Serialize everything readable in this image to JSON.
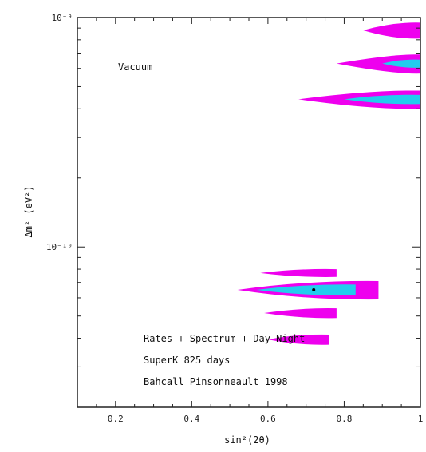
{
  "chart_data": {
    "type": "contour",
    "title": "",
    "xlabel": "sin²(2θ)",
    "ylabel": "Δm² (eV²)",
    "xlim": [
      0.1,
      1.0
    ],
    "ylim": [
      2e-11,
      1e-09
    ],
    "yscale": "log",
    "x_ticks": [
      {
        "value": 0.2,
        "label": "0.2"
      },
      {
        "value": 0.4,
        "label": "0.4"
      },
      {
        "value": 0.6,
        "label": "0.6"
      },
      {
        "value": 0.8,
        "label": "0.8"
      },
      {
        "value": 1.0,
        "label": "1"
      }
    ],
    "y_ticks": [
      {
        "value": 1e-09,
        "label": "10⁻⁹"
      },
      {
        "value": 1e-10,
        "label": "10⁻¹⁰"
      }
    ],
    "grid": false,
    "annotations": {
      "label": "Vacuum",
      "lines": [
        "Rates + Spectrum + Day-Night",
        "SuperK 825 days",
        "Bahcall Pinsonneault 1998"
      ]
    },
    "colors": {
      "outer": "#ee00ee",
      "inner": "#22ccee"
    },
    "best_fit": {
      "x": 0.72,
      "y": 6.5e-11
    },
    "regions": [
      {
        "level": "outer",
        "center": {
          "x": 0.93,
          "y": 8.8e-10
        },
        "x_extent": [
          0.85,
          1.0
        ],
        "y_extent": [
          8.1e-10,
          9.5e-10
        ]
      },
      {
        "level": "outer",
        "center": {
          "x": 0.93,
          "y": 6.3e-10
        },
        "x_extent": [
          0.78,
          1.0
        ],
        "y_extent": [
          5.7e-10,
          6.9e-10
        ]
      },
      {
        "level": "inner",
        "center": {
          "x": 0.95,
          "y": 6.3e-10
        },
        "x_extent": [
          0.9,
          1.0
        ],
        "y_extent": [
          6.05e-10,
          6.55e-10
        ]
      },
      {
        "level": "outer",
        "center": {
          "x": 0.87,
          "y": 4.4e-10
        },
        "x_extent": [
          0.68,
          1.0
        ],
        "y_extent": [
          4e-10,
          4.8e-10
        ]
      },
      {
        "level": "inner",
        "center": {
          "x": 0.9,
          "y": 4.4e-10
        },
        "x_extent": [
          0.8,
          1.0
        ],
        "y_extent": [
          4.2e-10,
          4.6e-10
        ]
      },
      {
        "level": "outer",
        "center": {
          "x": 0.68,
          "y": 7.7e-11
        },
        "x_extent": [
          0.58,
          0.78
        ],
        "y_extent": [
          7.4e-11,
          8e-11
        ]
      },
      {
        "level": "outer",
        "center": {
          "x": 0.7,
          "y": 6.5e-11
        },
        "x_extent": [
          0.52,
          0.89
        ],
        "y_extent": [
          5.9e-11,
          7.1e-11
        ]
      },
      {
        "level": "inner",
        "center": {
          "x": 0.7,
          "y": 6.5e-11
        },
        "x_extent": [
          0.57,
          0.83
        ],
        "y_extent": [
          6.15e-11,
          6.85e-11
        ]
      },
      {
        "level": "outer",
        "center": {
          "x": 0.69,
          "y": 5.15e-11
        },
        "x_extent": [
          0.59,
          0.78
        ],
        "y_extent": [
          4.9e-11,
          5.4e-11
        ]
      },
      {
        "level": "outer",
        "center": {
          "x": 0.68,
          "y": 3.95e-11
        },
        "x_extent": [
          0.6,
          0.76
        ],
        "y_extent": [
          3.75e-11,
          4.15e-11
        ]
      }
    ]
  }
}
